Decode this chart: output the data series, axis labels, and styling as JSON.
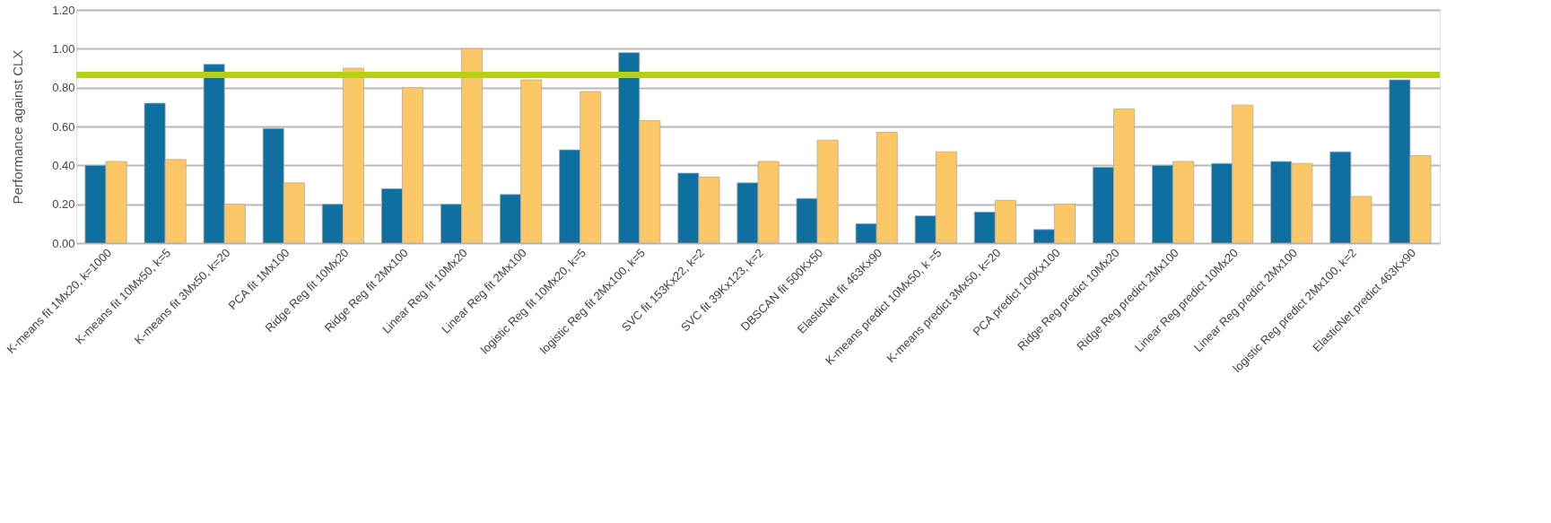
{
  "chart_data": {
    "type": "bar",
    "ylabel": "Performance against CLX",
    "categories": [
      "K-means fit 1Mx20, k=1000",
      "K-means fit 10Mx50, k=5",
      "K-means fit 3Mx50, k=20",
      "PCA fit 1Mx100",
      "Ridge Reg fit 10Mx20",
      "Ridge Reg fit 2Mx100",
      "Linear Reg fit 10Mx20",
      "Linear Reg fit 2Mx100",
      "logistic Reg fit 10Mx20, k=5",
      "logistic Reg fit 2Mx100, k=5",
      "SVC fit 153Kx22, k=2",
      "SVC fit 39Kx123, k=2",
      "DBSCAN fit 500Kx50",
      "ElasticNet fit 463Kx90",
      "K-means predict 10Mx50, k =5",
      "K-means predict 3Mx50, k=20",
      "PCA predict 100Kx100",
      "Ridge Reg predict 10Mx20",
      "Ridge Reg predict 2Mx100",
      "Linear Reg predict 10Mx20",
      "Linear Reg predict 2Mx100",
      "logistic Reg predict 2Mx100, k=2",
      "ElasticNet predict 463Kx90"
    ],
    "series": [
      {
        "color": "#0e6fa0",
        "values": [
          0.4,
          0.72,
          0.92,
          0.59,
          0.2,
          0.28,
          0.2,
          0.25,
          0.48,
          0.98,
          0.36,
          0.31,
          0.23,
          0.1,
          0.14,
          0.16,
          0.07,
          0.39,
          0.4,
          0.41,
          0.42,
          0.47,
          0.84
        ]
      },
      {
        "color": "#fcc867",
        "values": [
          0.42,
          0.43,
          0.2,
          0.31,
          0.9,
          0.8,
          1.0,
          0.84,
          0.78,
          0.63,
          0.34,
          0.42,
          0.53,
          0.57,
          0.47,
          0.22,
          0.2,
          0.69,
          0.42,
          0.71,
          0.41,
          0.24,
          0.45
        ]
      }
    ],
    "ylim": [
      0,
      1.2
    ],
    "yticks": [
      {
        "value": 0,
        "label": "0.00"
      },
      {
        "value": 0.2,
        "label": "0.20"
      },
      {
        "value": 0.4,
        "label": "0.40"
      },
      {
        "value": 0.6,
        "label": "0.60"
      },
      {
        "value": 0.8,
        "label": "0.80"
      },
      {
        "value": 1.0,
        "label": "1.00"
      },
      {
        "value": 1.2,
        "label": "1.20"
      }
    ],
    "grid": "y",
    "legend": false,
    "ref_lines": [
      {
        "axis": "y",
        "value": 0.865,
        "color": "#b5d10f"
      }
    ]
  }
}
